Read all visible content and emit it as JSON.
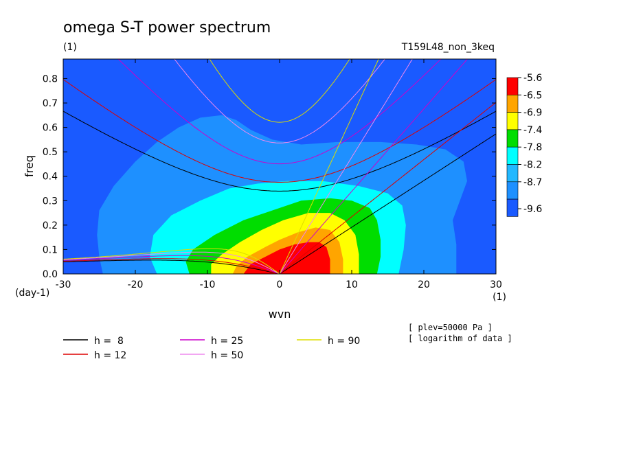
{
  "chart_data": {
    "type": "contour",
    "title": "omega S-T power spectrum",
    "subtitle": "(1)",
    "run_label": "T159L48_non_3keq",
    "xlabel": "wvn",
    "ylabel": "freq",
    "x_unit": "(1)",
    "y_unit": "(day-1)",
    "xlim": [
      -30,
      30
    ],
    "ylim": [
      0,
      0.88
    ],
    "x_ticks": [
      -30,
      -20,
      -10,
      0,
      10,
      20,
      30
    ],
    "x_tick_labels": [
      "-30",
      "-20",
      "-10",
      "0",
      "10",
      "20",
      "30"
    ],
    "y_ticks": [
      0,
      0.1,
      0.2,
      0.3,
      0.4,
      0.5,
      0.6,
      0.7,
      0.8
    ],
    "y_tick_labels": [
      "0.0",
      "0.1",
      "0.2",
      "0.3",
      "0.4",
      "0.5",
      "0.6",
      "0.7",
      "0.8"
    ],
    "colorbar": {
      "levels": [
        "-5.6",
        "-6.5",
        "-6.9",
        "-7.4",
        "-7.8",
        "-8.2",
        "-8.7",
        "-9.6"
      ],
      "colors": [
        "#ff0000",
        "#ffa500",
        "#ffff00",
        "#00dd00",
        "#00ffff",
        "#22b8ff",
        "#1e90ff",
        "#1a5aff"
      ]
    },
    "contour_regions": [
      {
        "level": "-8.7",
        "color": "#1e90ff",
        "points": [
          [
            -24.5,
            0
          ],
          [
            -25,
            0.07
          ],
          [
            -25.3,
            0.16
          ],
          [
            -25,
            0.26
          ],
          [
            -23,
            0.36
          ],
          [
            -20,
            0.46
          ],
          [
            -17,
            0.54
          ],
          [
            -14,
            0.6
          ],
          [
            -11,
            0.64
          ],
          [
            -8,
            0.65
          ],
          [
            -6,
            0.63
          ],
          [
            -4,
            0.59
          ],
          [
            -1,
            0.55
          ],
          [
            3,
            0.53
          ],
          [
            8,
            0.54
          ],
          [
            14,
            0.54
          ],
          [
            19,
            0.53
          ],
          [
            23,
            0.51
          ],
          [
            25.5,
            0.46
          ],
          [
            26,
            0.38
          ],
          [
            25,
            0.3
          ],
          [
            24,
            0.22
          ],
          [
            24.5,
            0.12
          ],
          [
            24.5,
            0
          ]
        ]
      },
      {
        "level": "-8.2",
        "color": "#00ffff",
        "points": [
          [
            -17,
            0
          ],
          [
            -18,
            0.07
          ],
          [
            -17.5,
            0.16
          ],
          [
            -15,
            0.24
          ],
          [
            -11,
            0.3
          ],
          [
            -7,
            0.35
          ],
          [
            -3,
            0.37
          ],
          [
            1,
            0.38
          ],
          [
            6,
            0.38
          ],
          [
            11,
            0.36
          ],
          [
            15,
            0.33
          ],
          [
            17,
            0.28
          ],
          [
            17.5,
            0.2
          ],
          [
            17.2,
            0.1
          ],
          [
            16.5,
            0
          ]
        ]
      },
      {
        "level": "-7.8",
        "color": "#00dd00",
        "points": [
          [
            -12.5,
            0
          ],
          [
            -13,
            0.05
          ],
          [
            -12,
            0.1
          ],
          [
            -9,
            0.16
          ],
          [
            -5,
            0.22
          ],
          [
            -1,
            0.26
          ],
          [
            3,
            0.3
          ],
          [
            7,
            0.31
          ],
          [
            10,
            0.3
          ],
          [
            12.5,
            0.27
          ],
          [
            13.5,
            0.22
          ],
          [
            14,
            0.14
          ],
          [
            14,
            0.07
          ],
          [
            13.5,
            0
          ]
        ]
      },
      {
        "level": "-7.4",
        "color": "#ffff00",
        "points": [
          [
            -9.5,
            0
          ],
          [
            -9.5,
            0.04
          ],
          [
            -8,
            0.08
          ],
          [
            -5.5,
            0.13
          ],
          [
            -2.5,
            0.18
          ],
          [
            0.5,
            0.22
          ],
          [
            4,
            0.25
          ],
          [
            7,
            0.25
          ],
          [
            9,
            0.22
          ],
          [
            10.5,
            0.16
          ],
          [
            11,
            0.08
          ],
          [
            11,
            0
          ]
        ]
      },
      {
        "level": "-6.9",
        "color": "#ffa500",
        "points": [
          [
            -6.5,
            0
          ],
          [
            -6,
            0.03
          ],
          [
            -4.5,
            0.07
          ],
          [
            -2,
            0.11
          ],
          [
            0,
            0.14
          ],
          [
            2.5,
            0.17
          ],
          [
            5,
            0.19
          ],
          [
            7,
            0.18
          ],
          [
            8.3,
            0.13
          ],
          [
            8.8,
            0.06
          ],
          [
            8.8,
            0
          ]
        ]
      },
      {
        "level": "-6.5",
        "color": "#ff0000",
        "points": [
          [
            -5,
            0
          ],
          [
            -4,
            0.04
          ],
          [
            -2,
            0.07
          ],
          [
            0,
            0.1
          ],
          [
            2,
            0.12
          ],
          [
            4,
            0.13
          ],
          [
            5.5,
            0.13
          ],
          [
            6.5,
            0.11
          ],
          [
            7,
            0.06
          ],
          [
            7,
            0
          ]
        ]
      }
    ],
    "dispersion_curves": [
      {
        "name": "h =  8",
        "h": 8,
        "color": "#000000"
      },
      {
        "name": "h = 12",
        "h": 12,
        "color": "#dd0000"
      },
      {
        "name": "h = 25",
        "h": 25,
        "color": "#cc00cc"
      },
      {
        "name": "h = 50",
        "h": 50,
        "color": "#ee88ee"
      },
      {
        "name": "h = 90",
        "h": 90,
        "color": "#dddd00"
      }
    ],
    "notes": [
      "[ plev=50000 Pa ]",
      "[ logarithm of data ]"
    ],
    "legend_placement": "bottom"
  }
}
